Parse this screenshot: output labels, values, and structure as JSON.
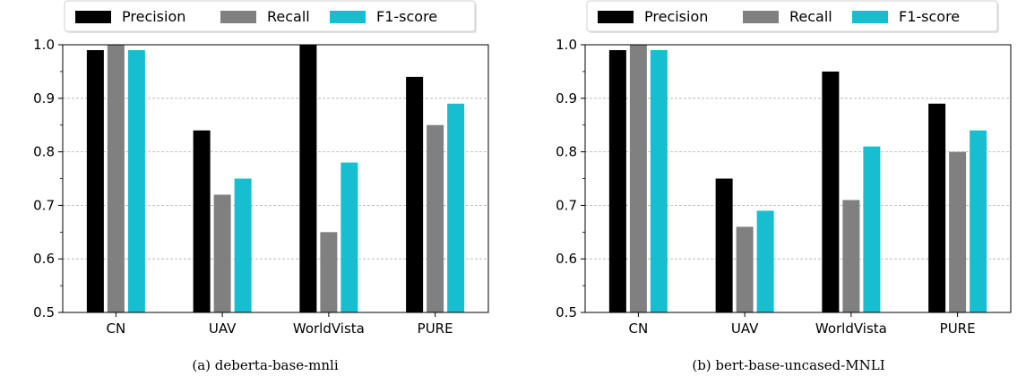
{
  "chart_data": [
    {
      "type": "bar",
      "caption": "(a) deberta-base-mnli",
      "categories": [
        "CN",
        "UAV",
        "WorldVista",
        "PURE"
      ],
      "series": [
        {
          "name": "Precision",
          "color": "#000000",
          "values": [
            0.99,
            0.84,
            1.0,
            0.94
          ]
        },
        {
          "name": "Recall",
          "color": "#808080",
          "values": [
            1.0,
            0.72,
            0.65,
            0.85
          ]
        },
        {
          "name": "F1-score",
          "color": "#17becf",
          "values": [
            0.99,
            0.75,
            0.78,
            0.89
          ]
        }
      ],
      "ylim": [
        0.5,
        1.0
      ],
      "yticks": [
        "0.5",
        "0.6",
        "0.7",
        "0.8",
        "0.9",
        "1.0"
      ],
      "grid": "y-dashed",
      "legend": "top"
    },
    {
      "type": "bar",
      "caption": "(b) bert-base-uncased-MNLI",
      "categories": [
        "CN",
        "UAV",
        "WorldVista",
        "PURE"
      ],
      "series": [
        {
          "name": "Precision",
          "color": "#000000",
          "values": [
            0.99,
            0.75,
            0.95,
            0.89
          ]
        },
        {
          "name": "Recall",
          "color": "#808080",
          "values": [
            1.0,
            0.66,
            0.71,
            0.8
          ]
        },
        {
          "name": "F1-score",
          "color": "#17becf",
          "values": [
            0.99,
            0.69,
            0.81,
            0.84
          ]
        }
      ],
      "ylim": [
        0.5,
        1.0
      ],
      "yticks": [
        "0.5",
        "0.6",
        "0.7",
        "0.8",
        "0.9",
        "1.0"
      ],
      "grid": "y-dashed",
      "legend": "top"
    }
  ]
}
